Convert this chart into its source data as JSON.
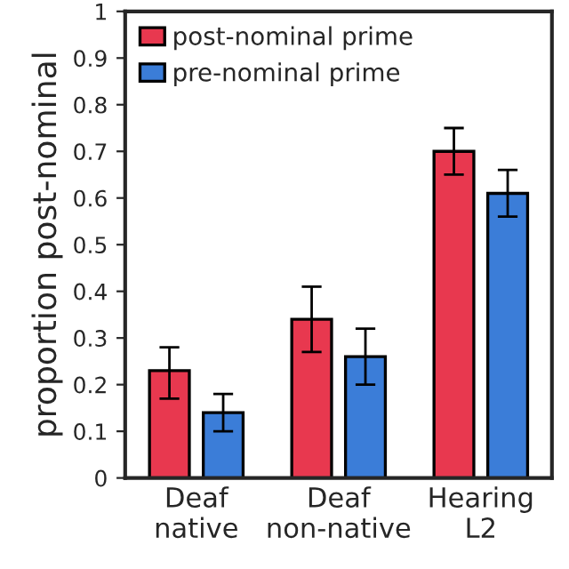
{
  "chart_data": {
    "type": "bar",
    "ylabel": "proportion post-nominal",
    "categories": [
      "Deaf\nnative",
      "Deaf\nnon-native",
      "Hearing\nL2"
    ],
    "series": [
      {
        "name": "post-nominal prime",
        "color": "#e8384f",
        "values": [
          0.23,
          0.34,
          0.7
        ],
        "errors": [
          [
            0.17,
            0.28
          ],
          [
            0.27,
            0.41
          ],
          [
            0.65,
            0.75
          ]
        ]
      },
      {
        "name": "pre-nominal prime",
        "color": "#3b7dd8",
        "values": [
          0.14,
          0.26,
          0.61
        ],
        "errors": [
          [
            0.1,
            0.18
          ],
          [
            0.2,
            0.32
          ],
          [
            0.56,
            0.66
          ]
        ]
      }
    ],
    "ylim": [
      0,
      1
    ],
    "yticks": [
      0,
      0.1,
      0.2,
      0.3,
      0.4,
      0.5,
      0.6,
      0.7,
      0.8,
      0.9,
      1
    ],
    "legend": "top left",
    "grid": false
  }
}
